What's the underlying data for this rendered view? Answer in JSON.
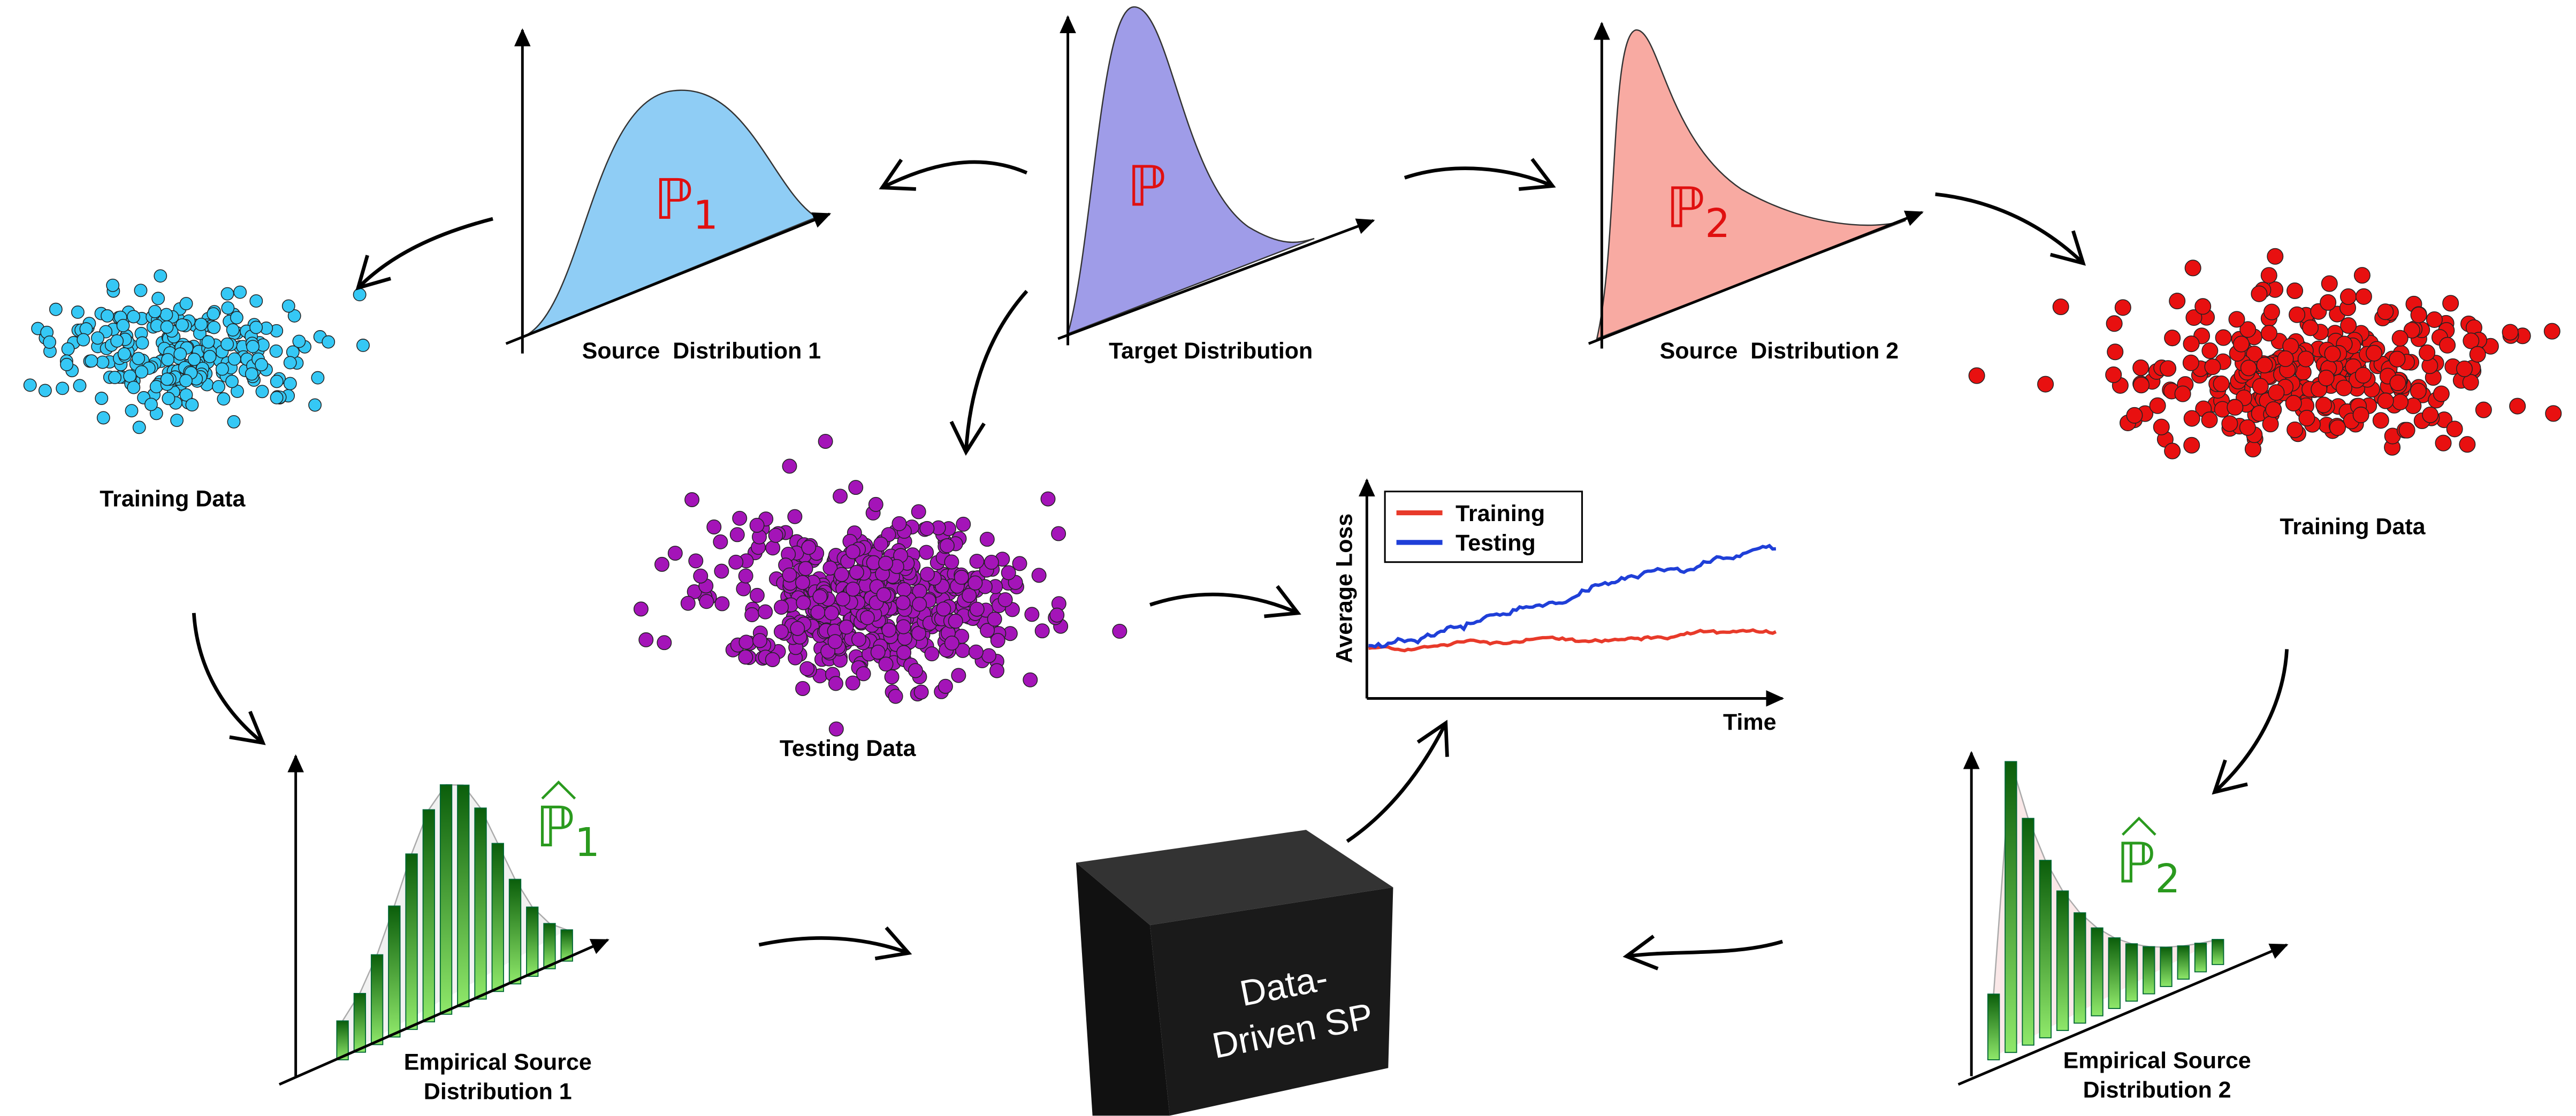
{
  "distributions": [
    {
      "label": "Source  Distribution 1",
      "symbol": "ℙ",
      "subscript": "1"
    },
    {
      "label": "Target Distribution",
      "symbol": "ℙ"
    },
    {
      "label": "Source  Distribution 2",
      "symbol": "ℙ",
      "subscript": "2"
    }
  ],
  "datasets": [
    {
      "label": "Training Data"
    },
    {
      "label": "Testing Data"
    },
    {
      "label": "Training Data"
    }
  ],
  "empirical": [
    {
      "label_lines": [
        "Empirical Source",
        "Distribution 1"
      ],
      "symbol": "ℙ",
      "subscript": "1"
    },
    {
      "label_lines": [
        "Empirical Source",
        "Distribution 2"
      ],
      "symbol": "ℙ",
      "subscript": "2"
    }
  ],
  "model": {
    "label_lines": [
      "Data-",
      "Driven SP"
    ]
  },
  "loss_plot": {
    "y_label": "Average Loss",
    "x_label": "Time",
    "legend": [
      "Training",
      "Testing"
    ]
  }
}
